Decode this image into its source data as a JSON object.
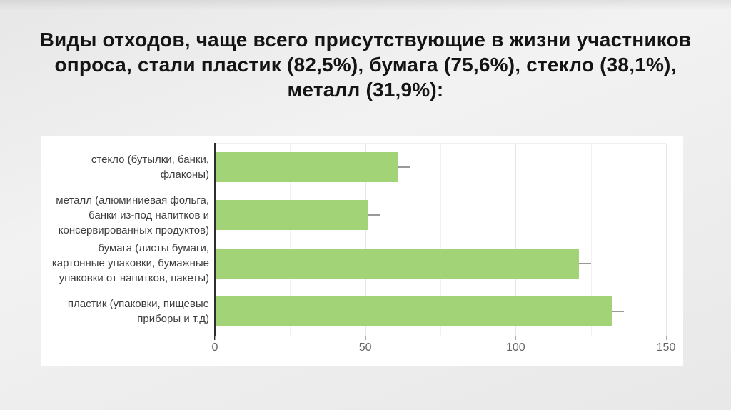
{
  "slide": {
    "title": "Виды отходов, чаще всего присутствующие в жизни участников опроса, стали пластик (82,5%), бумага (75,6%), стекло (38,1%), металл (31,9%):",
    "title_lines": [
      "Виды отходов, чаще всего присутствующие в жизни участников",
      "опроса, стали пластик (82,5%), бумага (75,6%), стекло (38,1%),",
      "металл (31,9%):"
    ]
  },
  "chart_data": {
    "type": "bar",
    "orientation": "horizontal",
    "categories": [
      "стекло (бутылки, банки, флаконы)",
      "металл (алюминиевая фольга, банки из-под напитков и консервированных продуктов)",
      "бумага (листы бумаги, картонные упаковки, бумажные упаковки от напитков, пакеты)",
      "пластик (упаковки, пищевые приборы и т.д)"
    ],
    "label_lines": [
      [
        "стекло (бутылки, банки,",
        "флаконы)"
      ],
      [
        "металл (алюминиевая фольга,",
        "банки из-под напитков и",
        "консервированных продуктов)"
      ],
      [
        "бумага (листы бумаги,",
        "картонные упаковки, бумажные",
        "упаковки от напитков, пакеты)"
      ],
      [
        "пластик (упаковки, пищевые",
        "приборы и т.д)"
      ]
    ],
    "values": [
      61,
      51,
      121,
      132
    ],
    "whisker_ends": [
      65,
      55,
      125,
      136
    ],
    "percent_of_respondents": [
      "38,1%",
      "31,9%",
      "75,6%",
      "82,5%"
    ],
    "xlim": [
      0,
      150
    ],
    "x_ticks": [
      0,
      50,
      100,
      150
    ],
    "minor_grid_step": 25,
    "grid": true,
    "bar_color": "#a3d377",
    "whisker_color": "#999999",
    "axis_color": "#2e2e2e"
  }
}
